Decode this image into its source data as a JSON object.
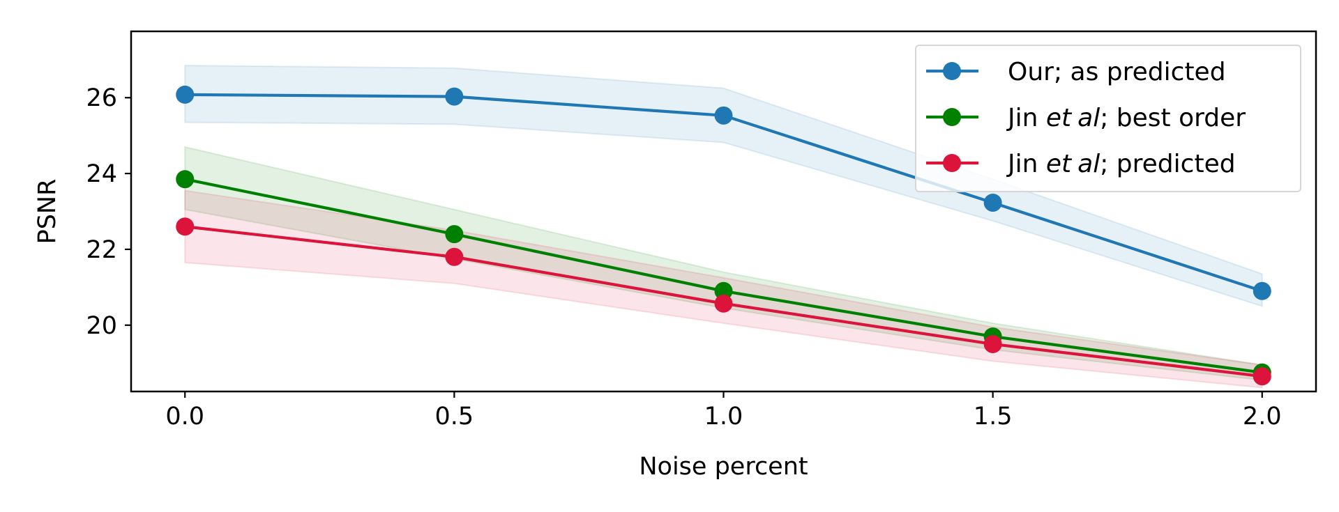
{
  "chart_data": {
    "type": "line",
    "xlabel": "Noise percent",
    "ylabel": "PSNR",
    "x": [
      0.0,
      0.5,
      1.0,
      1.5,
      2.0
    ],
    "xticks": [
      "0.0",
      "0.5",
      "1.0",
      "1.5",
      "2.0"
    ],
    "yticks": [
      "20",
      "22",
      "24",
      "26"
    ],
    "ytick_values": [
      20,
      22,
      24,
      26
    ],
    "xlim": [
      -0.1,
      2.1
    ],
    "ylim": [
      18.25,
      27.75
    ],
    "grid": false,
    "legend_position": "top-right",
    "series": [
      {
        "name": "Our; as predicted",
        "name_parts": [
          "Our; as predicted",
          "",
          "",
          ""
        ],
        "color": "#1f77b4",
        "values": [
          26.08,
          26.03,
          25.53,
          23.23,
          20.9
        ],
        "band_upper": [
          26.85,
          26.78,
          26.25,
          23.85,
          21.35
        ],
        "band_lower": [
          25.35,
          25.3,
          24.82,
          22.75,
          20.5
        ]
      },
      {
        "name": "Jin et al; best order",
        "name_parts": [
          "Jin ",
          "et",
          "al",
          "; best order"
        ],
        "color": "#008000",
        "values": [
          23.85,
          22.4,
          20.9,
          19.7,
          18.75
        ],
        "band_upper": [
          24.7,
          23.05,
          21.4,
          20.05,
          18.95
        ],
        "band_lower": [
          23.05,
          21.75,
          20.45,
          19.35,
          18.55
        ]
      },
      {
        "name": "Jin et al; predicted",
        "name_parts": [
          "Jin ",
          "et",
          "al",
          "; predicted"
        ],
        "color": "#dc143c",
        "values": [
          22.6,
          21.8,
          20.57,
          19.5,
          18.65
        ],
        "band_upper": [
          23.55,
          22.5,
          21.25,
          19.95,
          18.95
        ],
        "band_lower": [
          21.65,
          21.1,
          20.05,
          19.05,
          18.35
        ]
      }
    ]
  }
}
